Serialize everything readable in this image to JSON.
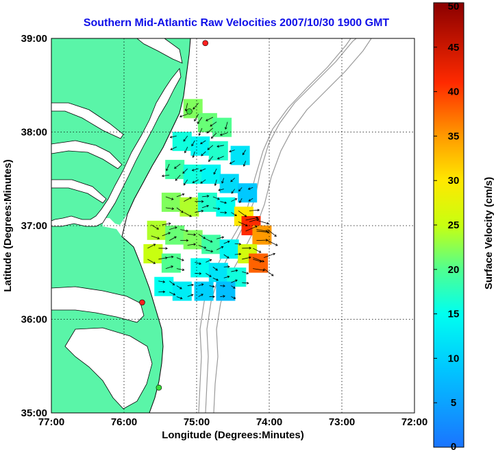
{
  "chart_data": {
    "type": "heatmap",
    "title": "Southern Mid-Atlantic Raw Velocities 2007/10/30 1900 GMT",
    "xlabel": "Longitude (Degrees:Minutes)",
    "ylabel": "Latitude (Degrees:Minutes)",
    "colorbar_label": "Surface Velocity (cm/s)",
    "xlim": [
      -77,
      -72
    ],
    "ylim": [
      35,
      39
    ],
    "x_ticks": [
      {
        "value": -77,
        "label": "77:00"
      },
      {
        "value": -76,
        "label": "76:00"
      },
      {
        "value": -75,
        "label": "75:00"
      },
      {
        "value": -74,
        "label": "74:00"
      },
      {
        "value": -73,
        "label": "73:00"
      },
      {
        "value": -72,
        "label": "72:00"
      }
    ],
    "y_ticks": [
      {
        "value": 35,
        "label": "35:00"
      },
      {
        "value": 36,
        "label": "36:00"
      },
      {
        "value": 37,
        "label": "37:00"
      },
      {
        "value": 38,
        "label": "38:00"
      },
      {
        "value": 39,
        "label": "39:00"
      }
    ],
    "colorbar_range": [
      0,
      50
    ],
    "colorbar_ticks": [
      "0",
      "5",
      "10",
      "15",
      "20",
      "25",
      "30",
      "35",
      "40",
      "45",
      "50"
    ],
    "grid": "dotted",
    "land_color": "#5af5a8",
    "stations": [
      {
        "lon": -74.88,
        "lat": 38.95,
        "color": "#ff2020"
      },
      {
        "lon": -75.1,
        "lat": 38.22,
        "color": "#3adc3a"
      },
      {
        "lon": -75.75,
        "lat": 36.18,
        "color": "#ff2020"
      },
      {
        "lon": -75.52,
        "lat": 35.27,
        "color": "#3adc3a"
      }
    ],
    "velocity_regions": [
      {
        "lon": -75.05,
        "lat": 38.25,
        "speed": 22
      },
      {
        "lon": -74.85,
        "lat": 38.1,
        "speed": 21
      },
      {
        "lon": -74.65,
        "lat": 38.05,
        "speed": 20
      },
      {
        "lon": -75.2,
        "lat": 37.9,
        "speed": 16
      },
      {
        "lon": -74.95,
        "lat": 37.85,
        "speed": 14
      },
      {
        "lon": -74.7,
        "lat": 37.8,
        "speed": 17
      },
      {
        "lon": -74.4,
        "lat": 37.75,
        "speed": 12
      },
      {
        "lon": -75.3,
        "lat": 37.6,
        "speed": 19
      },
      {
        "lon": -75.05,
        "lat": 37.55,
        "speed": 16
      },
      {
        "lon": -74.8,
        "lat": 37.55,
        "speed": 14
      },
      {
        "lon": -74.55,
        "lat": 37.45,
        "speed": 11
      },
      {
        "lon": -74.3,
        "lat": 37.35,
        "speed": 9
      },
      {
        "lon": -75.35,
        "lat": 37.25,
        "speed": 22
      },
      {
        "lon": -75.1,
        "lat": 37.2,
        "speed": 24
      },
      {
        "lon": -74.85,
        "lat": 37.25,
        "speed": 17
      },
      {
        "lon": -74.6,
        "lat": 37.2,
        "speed": 15
      },
      {
        "lon": -74.35,
        "lat": 37.1,
        "speed": 30
      },
      {
        "lon": -74.25,
        "lat": 37.0,
        "speed": 41
      },
      {
        "lon": -74.1,
        "lat": 36.9,
        "speed": 35
      },
      {
        "lon": -75.55,
        "lat": 36.95,
        "speed": 24
      },
      {
        "lon": -75.3,
        "lat": 36.9,
        "speed": 21
      },
      {
        "lon": -75.05,
        "lat": 36.85,
        "speed": 22
      },
      {
        "lon": -74.8,
        "lat": 36.8,
        "speed": 19
      },
      {
        "lon": -74.55,
        "lat": 36.75,
        "speed": 14
      },
      {
        "lon": -74.3,
        "lat": 36.7,
        "speed": 26
      },
      {
        "lon": -74.15,
        "lat": 36.6,
        "speed": 38
      },
      {
        "lon": -75.6,
        "lat": 36.7,
        "speed": 25
      },
      {
        "lon": -75.35,
        "lat": 36.6,
        "speed": 20
      },
      {
        "lon": -74.95,
        "lat": 36.55,
        "speed": 15
      },
      {
        "lon": -74.7,
        "lat": 36.5,
        "speed": 12
      },
      {
        "lon": -74.45,
        "lat": 36.45,
        "speed": 16
      },
      {
        "lon": -75.45,
        "lat": 36.35,
        "speed": 15
      },
      {
        "lon": -75.2,
        "lat": 36.3,
        "speed": 13
      },
      {
        "lon": -74.9,
        "lat": 36.3,
        "speed": 10
      },
      {
        "lon": -74.6,
        "lat": 36.3,
        "speed": 8
      }
    ]
  }
}
